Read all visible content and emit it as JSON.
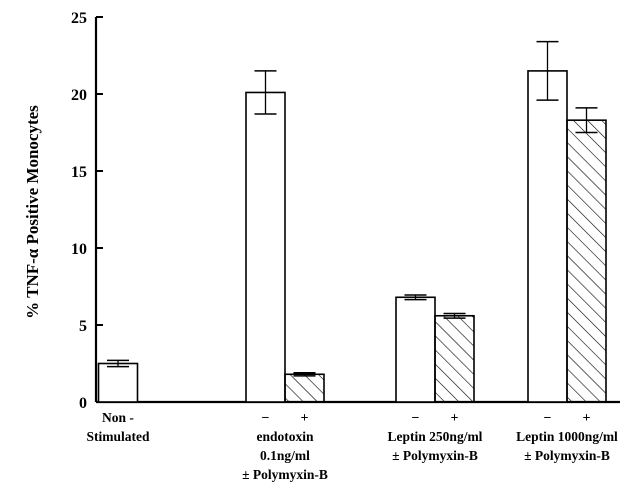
{
  "chart_data": {
    "type": "bar",
    "ylabel": "% TNF-α Positive Monocytes",
    "ylim": [
      0,
      25
    ],
    "yticks": [
      "0",
      "5",
      "10",
      "15",
      "20",
      "25"
    ],
    "grid": false,
    "groups": [
      {
        "label_lines": [
          "Non -",
          "Stimulated"
        ],
        "signs": [],
        "bars": [
          {
            "value": 2.5,
            "error": 0.2,
            "fill": "open"
          }
        ]
      },
      {
        "label_lines": [
          "endotoxin",
          "0.1ng/ml",
          "± Polymyxin-B"
        ],
        "signs": [
          "−",
          "+"
        ],
        "bars": [
          {
            "value": 20.1,
            "error": 1.4,
            "fill": "open"
          },
          {
            "value": 1.8,
            "error": 0.1,
            "fill": "hatched"
          }
        ]
      },
      {
        "label_lines": [
          "Leptin 250ng/ml",
          "± Polymyxin-B"
        ],
        "signs": [
          "−",
          "+"
        ],
        "bars": [
          {
            "value": 6.8,
            "error": 0.15,
            "fill": "open"
          },
          {
            "value": 5.6,
            "error": 0.15,
            "fill": "hatched"
          }
        ]
      },
      {
        "label_lines": [
          "Leptin 1000ng/ml",
          "± Polymyxin-B"
        ],
        "signs": [
          "−",
          "+"
        ],
        "bars": [
          {
            "value": 21.5,
            "error": 1.9,
            "fill": "open"
          },
          {
            "value": 18.3,
            "error": 0.8,
            "fill": "hatched"
          }
        ]
      }
    ]
  }
}
